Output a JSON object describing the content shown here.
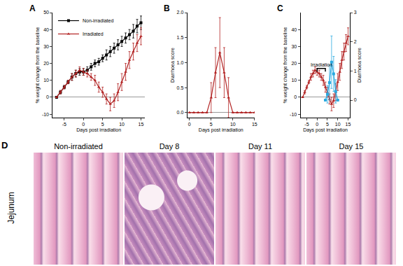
{
  "chart_data": [
    {
      "type": "line",
      "label": "A",
      "x_label": "Days post irradiation",
      "y_label": "% weight change from the baseline",
      "x": [
        -7,
        -6,
        -5,
        -4,
        -3,
        -2,
        -1,
        0,
        1,
        2,
        3,
        4,
        5,
        6,
        7,
        8,
        9,
        10,
        11,
        12,
        13,
        14,
        15
      ],
      "series": [
        {
          "name": "Non-irradiated",
          "color": "#000000",
          "marker": "square",
          "values": [
            0,
            3,
            6,
            9,
            12,
            14,
            15,
            15,
            16,
            18,
            20,
            21,
            23,
            25,
            27,
            29,
            31,
            33,
            35,
            37,
            39,
            42,
            44
          ],
          "errors": [
            0,
            1,
            1,
            1,
            2,
            2,
            2,
            2,
            2,
            2,
            2,
            2,
            2,
            3,
            3,
            3,
            3,
            3,
            3,
            3,
            4,
            4,
            4
          ]
        },
        {
          "name": "Irradiated",
          "color": "#b22222",
          "marker": "triangle-up",
          "values": [
            0,
            3,
            6,
            9,
            12,
            14,
            16,
            15,
            14,
            12,
            10,
            6,
            3,
            -1,
            -4,
            -2,
            3,
            9,
            15,
            22,
            27,
            32,
            36
          ],
          "errors": [
            0,
            1,
            1,
            1,
            2,
            2,
            2,
            2,
            2,
            2,
            3,
            3,
            3,
            3,
            4,
            4,
            5,
            5,
            5,
            5,
            5,
            5,
            5
          ]
        }
      ],
      "xlim": [
        -8,
        16
      ],
      "xticks": [
        -5,
        0,
        5,
        10,
        15
      ],
      "ylim": [
        -12,
        50
      ],
      "yticks": [
        -10,
        0,
        10,
        20,
        30,
        40,
        50
      ],
      "legend": "upper left",
      "grid": false
    },
    {
      "type": "line",
      "label": "B",
      "x_label": "Days post irradiation",
      "y_label": "Diarrhoea score",
      "x": [
        0,
        1,
        2,
        3,
        4,
        5,
        6,
        7,
        8,
        9,
        10,
        11,
        12,
        13,
        14,
        15
      ],
      "series": [
        {
          "color": "#b22222",
          "marker": "triangle-up",
          "values": [
            0,
            0,
            0,
            0,
            0,
            0.3,
            0.8,
            1.2,
            0.8,
            0.3,
            0,
            0,
            0,
            0,
            0,
            0
          ],
          "errors": [
            0,
            0,
            0,
            0,
            0,
            0.3,
            0.5,
            0.7,
            0.5,
            0.4,
            0,
            0,
            0,
            0,
            0,
            0
          ]
        }
      ],
      "xlim": [
        -0.5,
        15
      ],
      "xticks": [
        0,
        5,
        10,
        15
      ],
      "ylim": [
        -0.1,
        2.0
      ],
      "yticks": [
        {
          "value": 0,
          "label": "0.0"
        },
        {
          "value": 0.5,
          "label": "0.5"
        },
        {
          "value": 1,
          "label": "1.0"
        },
        {
          "value": 1.5,
          "label": "1.5"
        },
        {
          "value": 2,
          "label": "2.0"
        }
      ],
      "grid": false
    },
    {
      "type": "line",
      "label": "C",
      "x_label": "Days post irradiation",
      "y_label": "% weight change from the baseline",
      "y2_label": "Diarrhoea score",
      "series": [
        {
          "color": "#b22222",
          "marker": "triangle-up",
          "x": [
            -7,
            -6,
            -5,
            -4,
            -3,
            -2,
            -1,
            0,
            1,
            2,
            3,
            4,
            5,
            6,
            7,
            8,
            9,
            10,
            11,
            12,
            13,
            14,
            15
          ],
          "values": [
            0,
            3,
            6,
            9,
            12,
            14,
            16,
            15,
            14,
            12,
            10,
            6,
            3,
            -1,
            -4,
            -2,
            3,
            9,
            15,
            22,
            27,
            32,
            36
          ],
          "errors": [
            0,
            1,
            1,
            1,
            2,
            2,
            2,
            2,
            2,
            2,
            3,
            3,
            3,
            3,
            4,
            4,
            5,
            5,
            5,
            5,
            5,
            5,
            5
          ]
        },
        {
          "color": "#2aa9e0",
          "marker": "square",
          "axis": "y2",
          "x": [
            4,
            5,
            6,
            7,
            8,
            9,
            10
          ],
          "values": [
            0,
            0.2,
            0.6,
            1.3,
            0.9,
            0.3,
            0
          ],
          "errors": [
            0,
            0.3,
            0.6,
            0.9,
            0.6,
            0.4,
            0
          ]
        }
      ],
      "xlim": [
        -8,
        16
      ],
      "xticks": [
        -5,
        0,
        5,
        10,
        15
      ],
      "ylim": [
        -12,
        50
      ],
      "yticks": [
        -10,
        0,
        10,
        20,
        30,
        40
      ],
      "y2lim": [
        -0.6,
        3
      ],
      "y2ticks": [
        0,
        1,
        2,
        3
      ],
      "annotations": [
        {
          "text": "Irradiation",
          "x": [
            0,
            4
          ],
          "y": 17
        }
      ],
      "grid": false
    }
  ],
  "image_panel": {
    "label": "D",
    "row_label": "Jejunum",
    "titles": [
      "Non-irradiated",
      "Day 8",
      "Day 11",
      "Day 15"
    ]
  }
}
